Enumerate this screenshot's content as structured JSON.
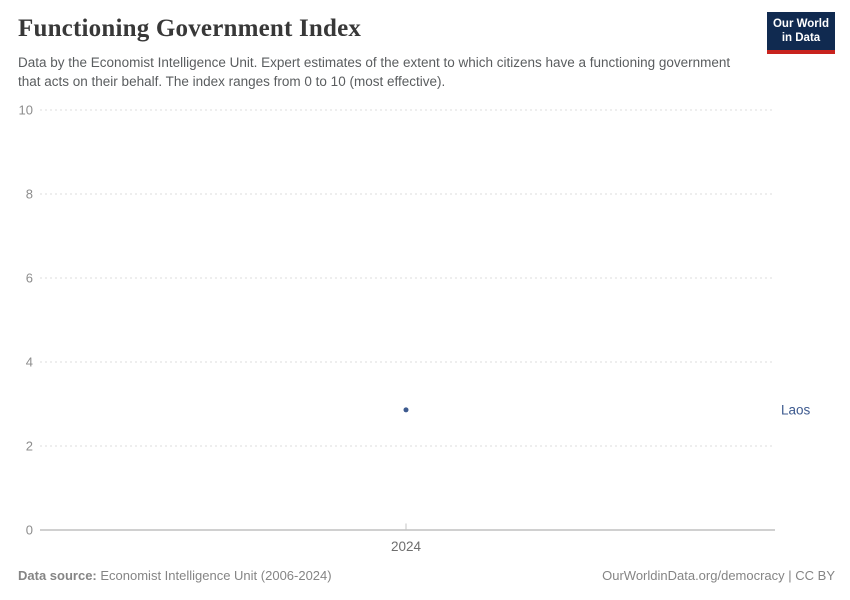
{
  "header": {
    "title": "Functioning Government Index",
    "subtitle": "Data by the Economist Intelligence Unit. Expert estimates of the extent to which citizens have a functioning government that acts on their behalf. The index ranges from 0 to 10 (most effective).",
    "logo": {
      "line1": "Our World",
      "line2": "in Data",
      "bg_color": "#102a50",
      "accent_color": "#c8231e"
    }
  },
  "chart_data": {
    "type": "scatter",
    "title": "Functioning Government Index",
    "series": [
      {
        "name": "Laos",
        "x": [
          2024
        ],
        "y": [
          2.86
        ],
        "color": "#3d5a8f"
      }
    ],
    "x_ticks": [
      2024
    ],
    "y_ticks": [
      0,
      2,
      4,
      6,
      8,
      10
    ],
    "ylim": [
      0,
      10
    ],
    "xlabel": "",
    "ylabel": "",
    "grid": "dashed-horizontal",
    "legend_position": "entity-label-right"
  },
  "colors": {
    "gridline": "#dcdcdc",
    "axis_line": "#a1a1a1",
    "y_tick_label": "#8d8d8d",
    "x_tick_label": "#6e6e6e"
  },
  "footer": {
    "datasource_label": "Data source:",
    "datasource_value": " Economist Intelligence Unit (2006-2024)",
    "attribution": "OurWorldinData.org/democracy | CC BY"
  }
}
